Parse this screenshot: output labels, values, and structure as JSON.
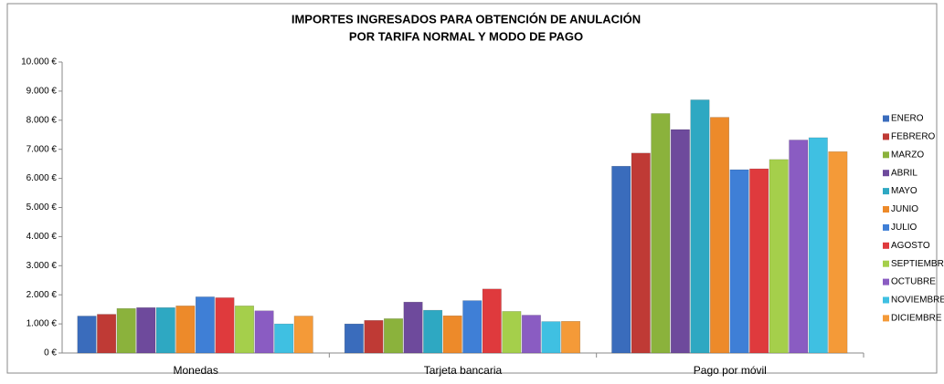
{
  "chart_data": {
    "type": "bar",
    "title": "IMPORTES INGRESADOS PARA OBTENCIÓN DE ANULACIÓN",
    "subtitle": "POR TARIFA NORMAL Y MODO DE PAGO",
    "categories": [
      "Monedas",
      "Tarjeta bancaria",
      "Pago por móvil"
    ],
    "series": [
      {
        "name": "ENERO",
        "color": "#3a6cbc",
        "values": [
          1270,
          1000,
          6420
        ]
      },
      {
        "name": "FEBRERO",
        "color": "#bf3a35",
        "values": [
          1330,
          1120,
          6870
        ]
      },
      {
        "name": "MARZO",
        "color": "#8bb23c",
        "values": [
          1530,
          1180,
          8230
        ]
      },
      {
        "name": "ABRIL",
        "color": "#6e4a9c",
        "values": [
          1560,
          1750,
          7680
        ]
      },
      {
        "name": "MAYO",
        "color": "#2ea8c2",
        "values": [
          1560,
          1470,
          8700
        ]
      },
      {
        "name": "JUNIO",
        "color": "#ed8a2a",
        "values": [
          1620,
          1280,
          8100
        ]
      },
      {
        "name": "JULIO",
        "color": "#3f7fd6",
        "values": [
          1930,
          1800,
          6300
        ]
      },
      {
        "name": "AGOSTO",
        "color": "#df3a3d",
        "values": [
          1900,
          2200,
          6330
        ]
      },
      {
        "name": "SEPTIEMBRE",
        "color": "#a5cf4b",
        "values": [
          1620,
          1430,
          6650
        ]
      },
      {
        "name": "OCTUBRE",
        "color": "#8a5cc2",
        "values": [
          1450,
          1300,
          7320
        ]
      },
      {
        "name": "NOVIEMBRE",
        "color": "#3fc0e2",
        "values": [
          1000,
          1080,
          7400
        ]
      },
      {
        "name": "DICIEMBRE",
        "color": "#f49a38",
        "values": [
          1270,
          1090,
          6920
        ]
      }
    ],
    "ylim": [
      0,
      10000
    ],
    "yticks": [
      {
        "value": 0,
        "label": "0 €"
      },
      {
        "value": 1000,
        "label": "1.000 €"
      },
      {
        "value": 2000,
        "label": "2.000 €"
      },
      {
        "value": 3000,
        "label": "3.000 €"
      },
      {
        "value": 4000,
        "label": "4.000 €"
      },
      {
        "value": 5000,
        "label": "5.000 €"
      },
      {
        "value": 6000,
        "label": "6.000 €"
      },
      {
        "value": 7000,
        "label": "7.000 €"
      },
      {
        "value": 8000,
        "label": "8.000 €"
      },
      {
        "value": 9000,
        "label": "9.000 €"
      },
      {
        "value": 10000,
        "label": "10.000 €"
      }
    ],
    "grid": false,
    "legend": "right"
  }
}
